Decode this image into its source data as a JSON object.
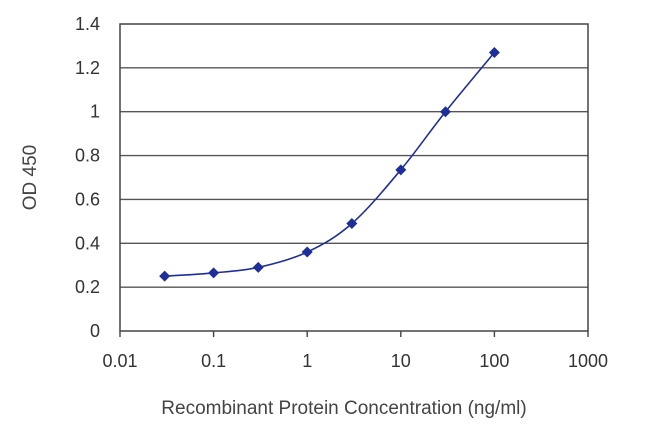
{
  "chart_data": {
    "type": "line",
    "title": "",
    "xlabel": "Recombinant Protein Concentration (ng/ml)",
    "ylabel": "OD 450",
    "x_scale": "log",
    "xlim": [
      0.01,
      1000
    ],
    "ylim": [
      0,
      1.4
    ],
    "x_ticks": [
      0.01,
      0.1,
      1,
      10,
      100,
      1000
    ],
    "x_tick_labels": [
      "0.01",
      "0.1",
      "1",
      "10",
      "100",
      "1000"
    ],
    "y_ticks": [
      0,
      0.2,
      0.4,
      0.6,
      0.8,
      1,
      1.2,
      1.4
    ],
    "y_tick_labels": [
      "0",
      "0.2",
      "0.4",
      "0.6",
      "0.8",
      "1",
      "1.2",
      "1.4"
    ],
    "grid": "horizontal",
    "legend": "none",
    "series": [
      {
        "color": "#1f2f9a",
        "marker": "diamond",
        "x": [
          0.03,
          0.1,
          0.3,
          1,
          3,
          10,
          30,
          100
        ],
        "y": [
          0.25,
          0.265,
          0.29,
          0.36,
          0.49,
          0.735,
          1.0,
          1.27
        ]
      }
    ]
  }
}
